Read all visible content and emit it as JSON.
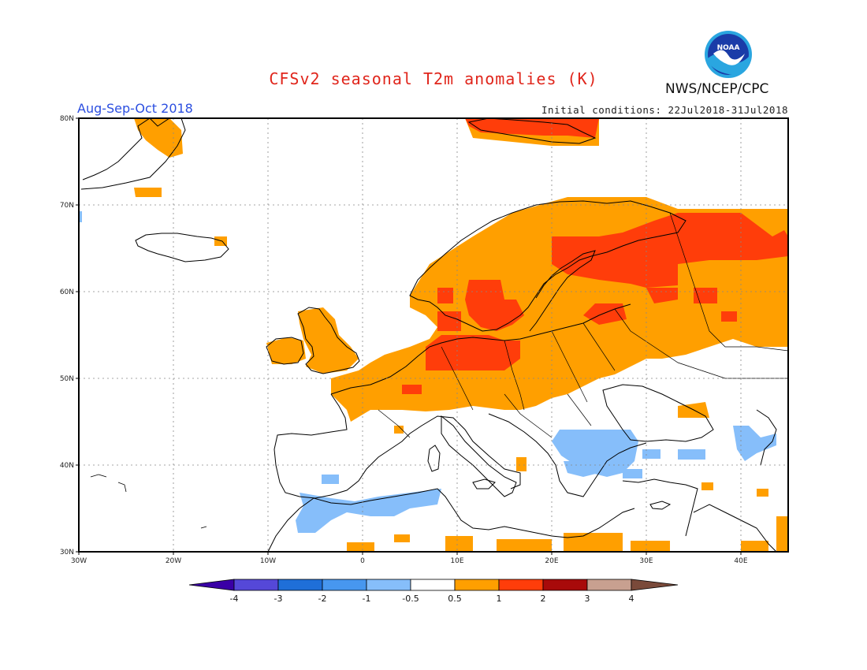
{
  "header": {
    "title": "CFSv2 seasonal T2m anomalies (K)",
    "period": "Aug-Sep-Oct 2018",
    "initial_conditions": "Initial conditions: 22Jul2018-31Jul2018",
    "agency": "NWS/NCEP/CPC",
    "logo_text": "NOAA"
  },
  "map": {
    "lon_ticks": [
      "30W",
      "20W",
      "10W",
      "0",
      "10E",
      "20E",
      "30E",
      "40E"
    ],
    "lat_ticks": [
      "80N",
      "70N",
      "60N",
      "50N",
      "40N",
      "30N"
    ],
    "lon_range": [
      -30,
      45
    ],
    "lat_range": [
      30,
      80
    ],
    "grid": "dotted"
  },
  "colorbar": {
    "labels": [
      "-4",
      "-3",
      "-2",
      "-1",
      "-0.5",
      "0.5",
      "1",
      "2",
      "3",
      "4"
    ],
    "colors": [
      "#3a00a6",
      "#5548d8",
      "#1f6fd8",
      "#4797ef",
      "#86befa",
      "#ffffff",
      "#ff9f00",
      "#ff3d0a",
      "#a80a0a",
      "#c8a090",
      "#7a4a3a"
    ]
  },
  "anomaly_regions": [
    {
      "level": "1",
      "color": "#ff9f00",
      "description": "Scandinavia, Baltic, central and northern Europe, western Russia"
    },
    {
      "level": "2",
      "color": "#ff3d0a",
      "description": "Germany, southern Sweden, northwestern Russia, Barents Sea"
    },
    {
      "level": "-1",
      "color": "#86befa",
      "description": "Balkans, Aegean, northern Africa, Black Sea coast"
    }
  ]
}
